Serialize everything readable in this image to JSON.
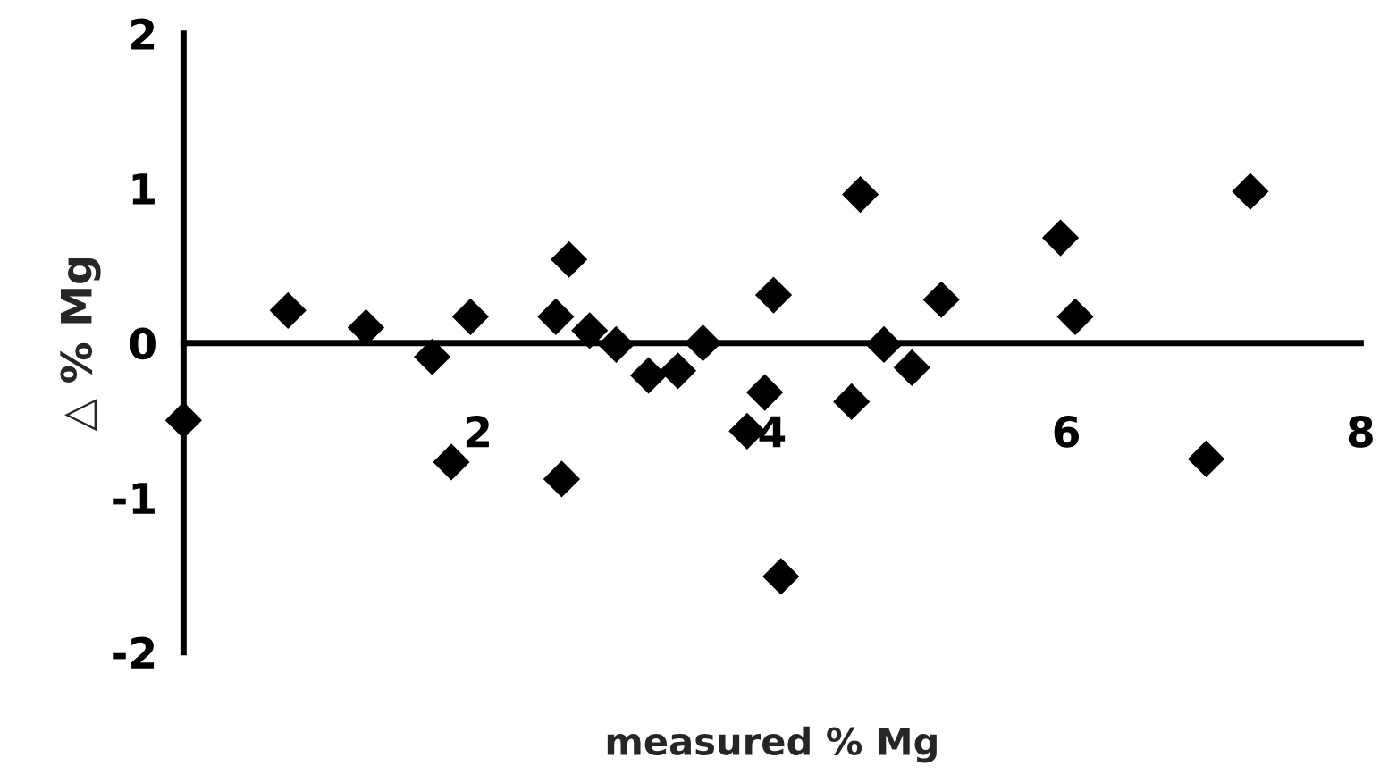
{
  "chart_data": {
    "type": "scatter",
    "xlabel": "measured % Mg",
    "ylabel": "△ % Mg",
    "xlim": [
      0,
      8
    ],
    "ylim": [
      -2,
      2
    ],
    "xticks": [
      2,
      4,
      6,
      8
    ],
    "yticks": [
      -2,
      -1,
      0,
      1,
      2
    ],
    "grid": false,
    "legend": false,
    "marker": "diamond",
    "series": [
      {
        "color": "#000000",
        "x": [
          0,
          0.71,
          1.24,
          1.69,
          1.95,
          1.82,
          2.53,
          2.62,
          2.57,
          2.76,
          2.94,
          3.16,
          3.36,
          3.53,
          3.83,
          3.95,
          4.01,
          4.06,
          4.54,
          4.6,
          4.76,
          4.95,
          5.15,
          5.96,
          6.06,
          6.95,
          7.25
        ],
        "values": [
          -0.5,
          0.21,
          0.1,
          -0.09,
          0.17,
          -0.77,
          0.17,
          0.54,
          -0.88,
          0.08,
          -0.01,
          -0.21,
          -0.18,
          0.0,
          -0.57,
          -0.32,
          0.31,
          -1.51,
          -0.38,
          0.96,
          -0.01,
          -0.16,
          0.28,
          0.68,
          0.17,
          -0.75,
          0.98
        ]
      }
    ]
  }
}
